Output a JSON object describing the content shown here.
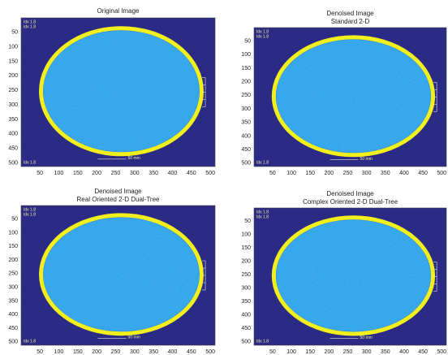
{
  "chart_data": [
    {
      "type": "image",
      "title": "Original Image",
      "xlim": [
        0.5,
        512.5
      ],
      "ylim": [
        512.5,
        0.5
      ],
      "xticks": [
        50,
        100,
        150,
        200,
        250,
        300,
        350,
        400,
        450,
        500
      ],
      "yticks": [
        50,
        100,
        150,
        200,
        250,
        300,
        350,
        400,
        450,
        500
      ],
      "annotations": [
        "Idx 1.8",
        "Idx 1.8",
        "Idx 1.8",
        "50 mm"
      ]
    },
    {
      "type": "image",
      "title": "Denoised Image",
      "subtitle": "Standard 2-D",
      "xlim": [
        0.5,
        512.5
      ],
      "ylim": [
        512.5,
        0.5
      ],
      "xticks": [
        50,
        100,
        150,
        200,
        250,
        300,
        350,
        400,
        450,
        500
      ],
      "yticks": [
        50,
        100,
        150,
        200,
        250,
        300,
        350,
        400,
        450,
        500
      ],
      "annotations": [
        "Idx 1.8",
        "Idx 1.8",
        "Idx 1.8",
        "50 mm"
      ]
    },
    {
      "type": "image",
      "title": "Denoised Image",
      "subtitle": "Real Oriented 2-D Dual-Tree",
      "xlim": [
        0.5,
        512.5
      ],
      "ylim": [
        512.5,
        0.5
      ],
      "xticks": [
        50,
        100,
        150,
        200,
        250,
        300,
        350,
        400,
        450,
        500
      ],
      "yticks": [
        50,
        100,
        150,
        200,
        250,
        300,
        350,
        400,
        450,
        500
      ],
      "annotations": [
        "Idx 1.8",
        "Idx 1.8",
        "Idx 1.8",
        "50 mm"
      ]
    },
    {
      "type": "image",
      "title": "Denoised Image",
      "subtitle": "Complex Oriented 2-D Dual-Tree",
      "xlim": [
        0.5,
        512.5
      ],
      "ylim": [
        512.5,
        0.5
      ],
      "xticks": [
        50,
        100,
        150,
        200,
        250,
        300,
        350,
        400,
        450,
        500
      ],
      "yticks": [
        50,
        100,
        150,
        200,
        250,
        300,
        350,
        400,
        450,
        500
      ],
      "annotations": [
        "Idx 1.8",
        "Idx 1.8",
        "Idx 1.8",
        "50 mm"
      ]
    }
  ]
}
